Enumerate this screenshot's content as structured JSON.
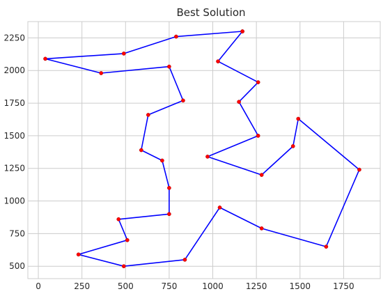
{
  "chart_data": {
    "type": "line",
    "title": "Best Solution",
    "xlabel": "",
    "ylabel": "",
    "xlim": [
      -60,
      1960
    ],
    "ylim": [
      405,
      2375
    ],
    "xticks": [
      0,
      250,
      500,
      750,
      1000,
      1250,
      1500,
      1750
    ],
    "yticks": [
      500,
      750,
      1000,
      1250,
      1500,
      1750,
      2000,
      2250
    ],
    "grid": true,
    "line_color": "#0000ff",
    "marker_color": "#ff0000",
    "series": [
      {
        "points": [
          [
            1170,
            2300
          ],
          [
            790,
            2260
          ],
          [
            490,
            2130
          ],
          [
            40,
            2090
          ],
          [
            360,
            1980
          ],
          [
            750,
            2030
          ],
          [
            830,
            1770
          ],
          [
            630,
            1660
          ],
          [
            590,
            1390
          ],
          [
            710,
            1310
          ],
          [
            750,
            1100
          ],
          [
            750,
            900
          ],
          [
            460,
            860
          ],
          [
            510,
            700
          ],
          [
            230,
            590
          ],
          [
            490,
            500
          ],
          [
            840,
            550
          ],
          [
            1040,
            950
          ],
          [
            1280,
            790
          ],
          [
            1650,
            650
          ],
          [
            1840,
            1240
          ],
          [
            1490,
            1630
          ],
          [
            1460,
            1420
          ],
          [
            1280,
            1200
          ],
          [
            970,
            1340
          ],
          [
            1260,
            1500
          ],
          [
            1150,
            1760
          ],
          [
            1260,
            1910
          ],
          [
            1030,
            2070
          ],
          [
            1170,
            2300
          ]
        ]
      }
    ]
  }
}
